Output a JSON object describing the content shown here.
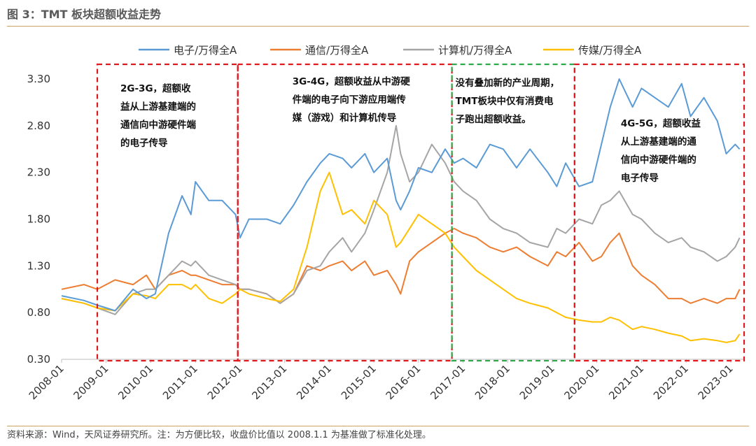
{
  "figure": {
    "title": "图 3：TMT 板块超额收益走势",
    "source": "资料来源：Wind，天风证券研究所。注：为方便比较，收盘价比值以 2008.1.1 为基准做了标准化处理。"
  },
  "chart_data": {
    "type": "line",
    "title": "",
    "xlabel": "",
    "ylabel": "",
    "ylim": [
      0.3,
      3.3
    ],
    "yticks": [
      "0.30",
      "0.80",
      "1.30",
      "1.80",
      "2.30",
      "2.80",
      "3.30"
    ],
    "xticks": [
      "2008-01",
      "2009-01",
      "2010-01",
      "2011-01",
      "2012-01",
      "2013-01",
      "2014-01",
      "2015-01",
      "2016-01",
      "2017-01",
      "2018-01",
      "2019-01",
      "2020-01",
      "2021-01",
      "2022-01",
      "2023-01"
    ],
    "legend_position": "top",
    "grid": false,
    "x": [
      2008.0,
      2008.5,
      2008.8,
      2009.2,
      2009.6,
      2009.9,
      2010.1,
      2010.4,
      2010.7,
      2010.9,
      2011.0,
      2011.3,
      2011.6,
      2011.9,
      2012.0,
      2012.2,
      2012.6,
      2012.9,
      2013.2,
      2013.5,
      2013.8,
      2014.0,
      2014.3,
      2014.5,
      2014.8,
      2015.0,
      2015.3,
      2015.5,
      2015.6,
      2015.8,
      2016.0,
      2016.3,
      2016.6,
      2016.8,
      2017.0,
      2017.3,
      2017.6,
      2017.9,
      2018.2,
      2018.5,
      2018.9,
      2019.1,
      2019.3,
      2019.6,
      2019.9,
      2020.1,
      2020.3,
      2020.5,
      2020.8,
      2021.0,
      2021.3,
      2021.6,
      2021.9,
      2022.1,
      2022.4,
      2022.7,
      2022.9,
      2023.1,
      2023.2
    ],
    "series": [
      {
        "name": "电子/万得全A",
        "color": "#5b9bd5",
        "values": [
          0.98,
          0.93,
          0.88,
          0.82,
          1.05,
          0.95,
          1.0,
          1.65,
          2.05,
          1.85,
          2.2,
          2.0,
          2.0,
          1.85,
          1.6,
          1.8,
          1.8,
          1.75,
          1.95,
          2.2,
          2.4,
          2.5,
          2.45,
          2.35,
          2.5,
          2.3,
          2.45,
          2.0,
          1.9,
          2.1,
          2.35,
          2.3,
          2.55,
          2.4,
          2.45,
          2.35,
          2.6,
          2.55,
          2.35,
          2.55,
          2.3,
          2.15,
          2.4,
          2.15,
          2.2,
          2.6,
          3.0,
          3.3,
          3.0,
          3.2,
          3.1,
          3.0,
          3.25,
          2.9,
          3.1,
          2.85,
          2.5,
          2.6,
          2.55
        ]
      },
      {
        "name": "通信/万得全A",
        "color": "#ed7d31",
        "values": [
          1.05,
          1.1,
          1.05,
          1.15,
          1.1,
          1.2,
          1.05,
          1.2,
          1.25,
          1.2,
          1.2,
          1.15,
          1.1,
          1.1,
          1.05,
          1.05,
          1.0,
          0.9,
          1.0,
          1.3,
          1.25,
          1.3,
          1.35,
          1.25,
          1.35,
          1.2,
          1.25,
          1.1,
          1.0,
          1.35,
          1.45,
          1.55,
          1.65,
          1.7,
          1.65,
          1.6,
          1.5,
          1.45,
          1.5,
          1.4,
          1.3,
          1.45,
          1.4,
          1.55,
          1.35,
          1.4,
          1.55,
          1.65,
          1.3,
          1.2,
          1.1,
          0.95,
          0.95,
          0.9,
          0.95,
          0.9,
          0.95,
          0.95,
          1.05
        ]
      },
      {
        "name": "计算机/万得全A",
        "color": "#a5a5a5",
        "values": [
          0.95,
          0.9,
          0.85,
          0.78,
          1.0,
          1.05,
          1.05,
          1.2,
          1.35,
          1.3,
          1.35,
          1.2,
          1.15,
          1.1,
          1.05,
          1.05,
          1.0,
          0.9,
          1.0,
          1.25,
          1.3,
          1.45,
          1.6,
          1.45,
          1.65,
          1.9,
          2.3,
          2.8,
          2.5,
          2.2,
          2.3,
          2.6,
          2.4,
          2.2,
          2.1,
          2.0,
          1.8,
          1.7,
          1.65,
          1.55,
          1.5,
          1.7,
          1.65,
          1.8,
          1.75,
          1.95,
          2.0,
          2.1,
          1.85,
          1.8,
          1.65,
          1.55,
          1.6,
          1.5,
          1.45,
          1.35,
          1.4,
          1.5,
          1.6
        ]
      },
      {
        "name": "传媒/万得全A",
        "color": "#ffc000",
        "values": [
          0.95,
          0.9,
          0.85,
          0.82,
          1.0,
          0.98,
          0.95,
          1.1,
          1.1,
          1.05,
          1.1,
          0.95,
          0.9,
          1.0,
          1.05,
          1.0,
          0.95,
          0.92,
          1.05,
          1.5,
          2.1,
          2.3,
          1.85,
          1.9,
          1.75,
          2.0,
          1.85,
          1.5,
          1.55,
          1.7,
          1.85,
          1.75,
          1.65,
          1.5,
          1.4,
          1.25,
          1.15,
          1.05,
          0.95,
          0.9,
          0.85,
          0.8,
          0.75,
          0.72,
          0.7,
          0.7,
          0.75,
          0.72,
          0.62,
          0.65,
          0.62,
          0.58,
          0.55,
          0.5,
          0.52,
          0.5,
          0.48,
          0.5,
          0.57
        ]
      }
    ],
    "regions": [
      {
        "x0": 2008.8,
        "x1": 2011.95,
        "color": "#e0191e",
        "lines": [
          "2G-3G，超额收",
          "益从上游基建端的",
          "通信向中游硬件端",
          "的电子传导"
        ]
      },
      {
        "x0": 2011.95,
        "x1": 2016.75,
        "color": "#e0191e",
        "lines": [
          "3G-4G，超额收益从中游硬",
          "件端的电子向下游应用端传",
          "媒（游戏）和计算机传导"
        ]
      },
      {
        "x0": 2016.75,
        "x1": 2019.5,
        "color": "#2ea84a",
        "lines": [
          "没有叠加新的产业周期，",
          "TMT板块中仅有消费电",
          "子跑出超额收益。"
        ]
      },
      {
        "x0": 2019.5,
        "x1": 2023.3,
        "color": "#e0191e",
        "lines": [
          "4G-5G，超额收益",
          "从上游基建端的通",
          "信向中游硬件端的",
          "电子传导"
        ]
      }
    ]
  }
}
